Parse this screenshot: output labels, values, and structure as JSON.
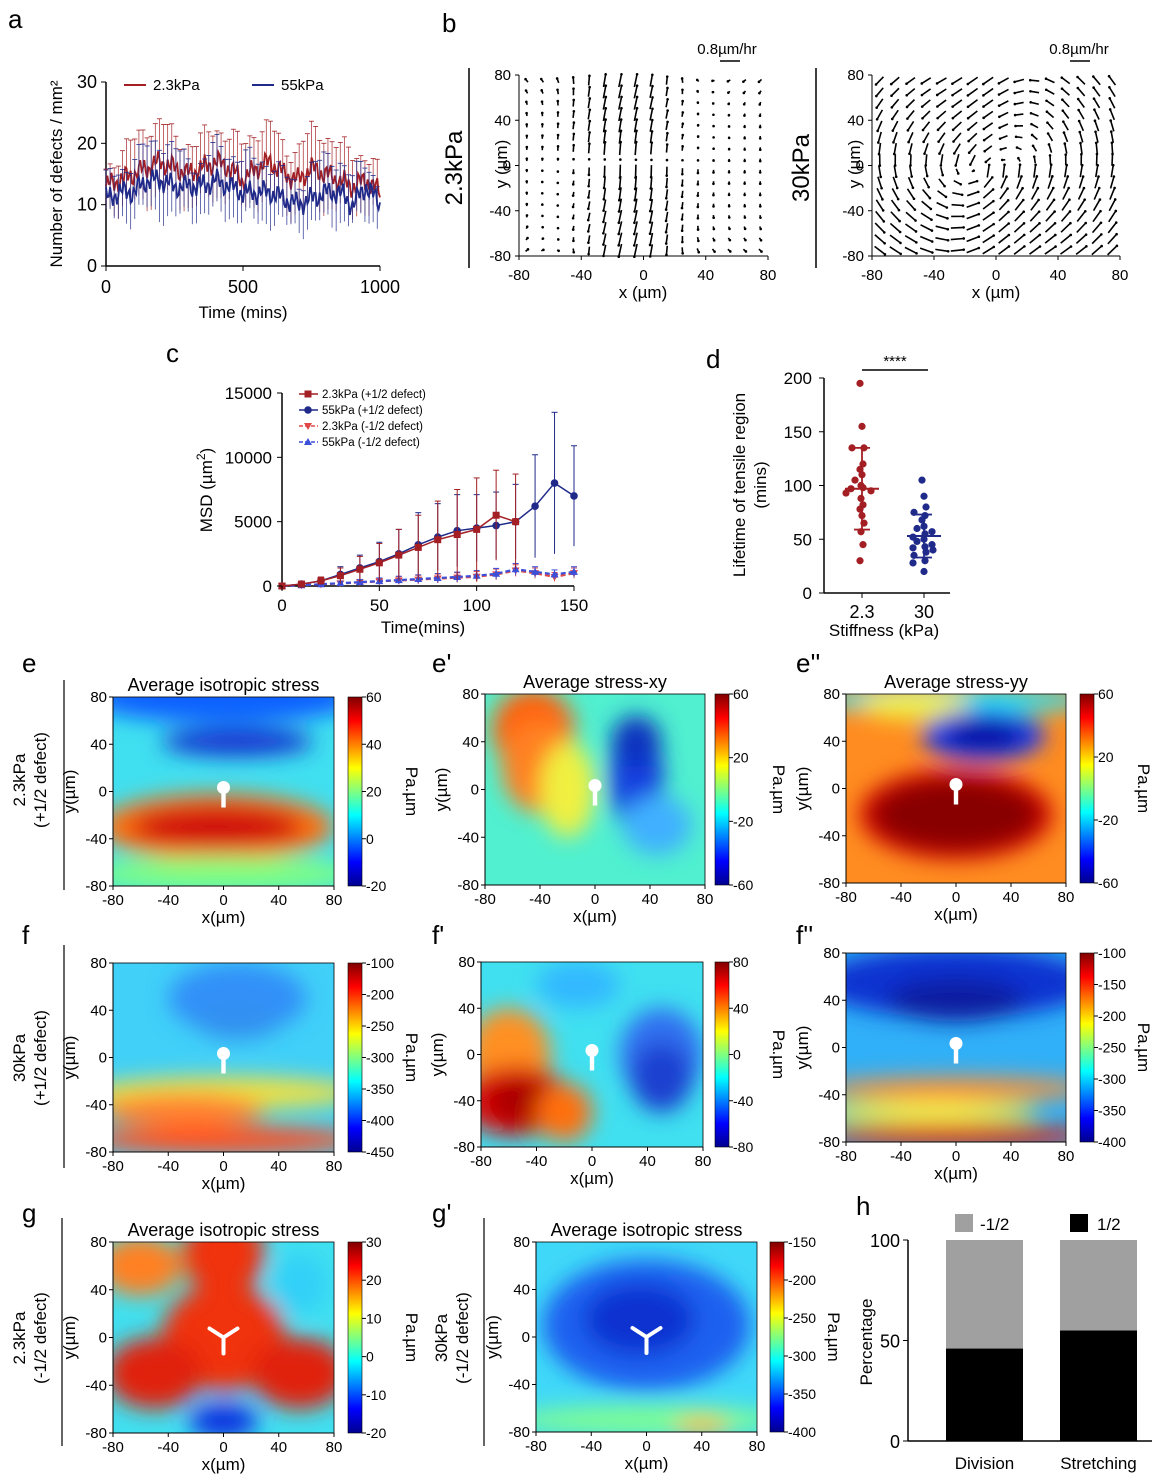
{
  "panels": {
    "a": {
      "label": "a",
      "chart_data": {
        "type": "line",
        "xlabel": "Time (mins)",
        "ylabel": "Number of defects / mm²",
        "xlim": [
          0,
          1000
        ],
        "ylim": [
          0,
          30
        ],
        "xticks": [
          "0",
          "500",
          "1000"
        ],
        "yticks": [
          "0",
          "10",
          "20",
          "30"
        ],
        "legend_position": "top",
        "series": [
          {
            "name": "2.3kPa",
            "color": "#a31f24",
            "x": [
              0,
              50,
              100,
              150,
              200,
              250,
              300,
              350,
              400,
              450,
              500,
              550,
              600,
              650,
              700,
              750,
              800,
              850,
              900,
              950,
              1000
            ],
            "y": [
              13,
              14,
              15,
              16,
              17,
              16,
              15,
              16,
              17,
              16,
              14,
              16,
              17,
              15,
              14,
              16,
              15,
              14,
              13,
              14,
              12
            ],
            "err": [
              4,
              5,
              5,
              6,
              6,
              5,
              6,
              6,
              6,
              5,
              5,
              6,
              6,
              6,
              6,
              6,
              6,
              5,
              5,
              5,
              4
            ]
          },
          {
            "name": "55kPa",
            "color": "#1f2a8a",
            "x": [
              0,
              50,
              100,
              150,
              200,
              250,
              300,
              350,
              400,
              450,
              500,
              550,
              600,
              650,
              700,
              750,
              800,
              850,
              900,
              950,
              1000
            ],
            "y": [
              11,
              12,
              12,
              14,
              14,
              13,
              13,
              13,
              14,
              13,
              12,
              12,
              12,
              11,
              10,
              11,
              12,
              12,
              10,
              13,
              10
            ],
            "err": [
              4,
              4,
              5,
              5,
              6,
              6,
              5,
              5,
              6,
              5,
              5,
              5,
              5,
              5,
              4,
              5,
              5,
              5,
              4,
              5,
              4
            ]
          }
        ]
      }
    },
    "b": {
      "label": "b",
      "scale_label": "0.8µm/hr",
      "xlabel": "x (µm)",
      "ylabel": "y (µm)",
      "xticks": [
        "-80",
        "-40",
        "0",
        "40",
        "80"
      ],
      "yticks": [
        "80",
        "40",
        "0",
        "-40",
        "-80"
      ],
      "subpanels": [
        {
          "row_label": "2.3kPa",
          "chart_data": {
            "type": "vector-field",
            "pattern": "comet"
          }
        },
        {
          "row_label": "30kPa",
          "chart_data": {
            "type": "vector-field",
            "pattern": "vortex"
          }
        }
      ]
    },
    "c": {
      "label": "c",
      "chart_data": {
        "type": "line",
        "xlabel": "Time(mins)",
        "ylabel": "MSD (µm²)",
        "ylabel_main": "MSD (µm",
        "ylabel_sup": "2",
        "ylabel_close": ")",
        "xlim": [
          0,
          150
        ],
        "ylim": [
          0,
          15000
        ],
        "xticks": [
          "0",
          "50",
          "100",
          "150"
        ],
        "yticks": [
          "0",
          "5000",
          "10000",
          "15000"
        ],
        "legend_position": "top-left",
        "series": [
          {
            "name": "2.3kPa (+1/2 defect)",
            "color": "#a31f24",
            "style": "solid",
            "marker": "square",
            "x": [
              0,
              10,
              20,
              30,
              40,
              50,
              60,
              70,
              80,
              90,
              100,
              110,
              120
            ],
            "y": [
              0,
              150,
              400,
              800,
              1300,
              1800,
              2400,
              3000,
              3600,
              4000,
              4400,
              5500,
              5000
            ],
            "err": [
              0,
              100,
              300,
              600,
              1000,
              1500,
              2000,
              2500,
              3000,
              3500,
              4000,
              3500,
              3700
            ]
          },
          {
            "name": "55kPa (+1/2 defect)",
            "color": "#1f2a8a",
            "style": "solid",
            "marker": "circle",
            "x": [
              0,
              10,
              20,
              30,
              40,
              50,
              60,
              70,
              80,
              90,
              100,
              110,
              120,
              130,
              140,
              150
            ],
            "y": [
              0,
              150,
              400,
              900,
              1400,
              1900,
              2500,
              3200,
              3800,
              4300,
              4500,
              4700,
              5000,
              6200,
              8000,
              7000
            ],
            "err": [
              0,
              100,
              300,
              600,
              1000,
              1500,
              1900,
              2500,
              2600,
              2800,
              2600,
              2600,
              2900,
              4000,
              5500,
              3900
            ]
          },
          {
            "name": "2.3kPa (-1/2 defect)",
            "color": "#e04848",
            "style": "dashed",
            "marker": "triangle-down",
            "x": [
              0,
              10,
              20,
              30,
              40,
              50,
              60,
              70,
              80,
              90,
              100,
              110,
              120,
              130,
              140,
              150
            ],
            "y": [
              0,
              60,
              130,
              200,
              280,
              360,
              430,
              500,
              580,
              650,
              720,
              900,
              1200,
              1000,
              700,
              1000
            ],
            "err": [
              0,
              50,
              100,
              150,
              200,
              250,
              300,
              330,
              350,
              380,
              400,
              420,
              450,
              400,
              350,
              400
            ]
          },
          {
            "name": "55kPa (-1/2 defect)",
            "color": "#3b4fd8",
            "style": "dashed",
            "marker": "triangle-up",
            "x": [
              0,
              10,
              20,
              30,
              40,
              50,
              60,
              70,
              80,
              90,
              100,
              110,
              120,
              130,
              140,
              150
            ],
            "y": [
              0,
              60,
              140,
              220,
              300,
              380,
              460,
              540,
              620,
              700,
              800,
              950,
              1300,
              1100,
              900,
              1100
            ],
            "err": [
              0,
              50,
              100,
              150,
              200,
              250,
              300,
              330,
              350,
              380,
              400,
              420,
              450,
              400,
              350,
              400
            ]
          }
        ]
      }
    },
    "d": {
      "label": "d",
      "significance": "****",
      "chart_data": {
        "type": "scatter",
        "xlabel": "Stiffness (kPa)",
        "ylabel": "Lifetime of tensile region (mins)",
        "ylabel_line1": "Lifetime of tensile region",
        "ylabel_line2": "(mins)",
        "categories": [
          "2.3",
          "30"
        ],
        "ylim": [
          0,
          200
        ],
        "yticks": [
          "0",
          "50",
          "100",
          "150",
          "200"
        ],
        "series": [
          {
            "name": "2.3",
            "color": "#a31f24",
            "mean": 97,
            "sd": 38,
            "values": [
              195,
              155,
              135,
              135,
              120,
              115,
              110,
              105,
              100,
              98,
              97,
              95,
              93,
              88,
              82,
              78,
              72,
              65,
              57,
              45,
              30
            ]
          },
          {
            "name": "30",
            "color": "#1f2a8a",
            "mean": 53,
            "sd": 20,
            "values": [
              105,
              90,
              80,
              75,
              72,
              68,
              62,
              60,
              57,
              55,
              52,
              50,
              48,
              45,
              43,
              42,
              40,
              38,
              35,
              30,
              28,
              20
            ]
          }
        ]
      }
    },
    "heatmaps": {
      "xlabel": "x(µm)",
      "ylabel": "y(µm)",
      "unit": "Pa.µm",
      "xticks": [
        "-80",
        "-40",
        "0",
        "40",
        "80"
      ],
      "yticks": [
        "80",
        "40",
        "0",
        "-40",
        "-80"
      ],
      "rows": [
        {
          "row_label_1": "2.3kPa",
          "row_label_2": "(+1/2 defect)"
        },
        {
          "row_label_1": "30kPa",
          "row_label_2": "(+1/2 defect)"
        },
        {
          "row_label_1": "2.3kPa",
          "row_label_2": "(-1/2 defect)"
        },
        {
          "row_label_1": "30kPa",
          "row_label_2": "(-1/2 defect)"
        }
      ],
      "items": [
        {
          "label": "e",
          "title": "Average isotropic stress",
          "cb_ticks": [
            "60",
            "40",
            "20",
            "0",
            "-20"
          ],
          "chart_data": {
            "type": "heatmap",
            "pattern": "iso-plus-soft"
          }
        },
        {
          "label": "e'",
          "title": "Average stress-xy",
          "cb_ticks": [
            "60",
            "20",
            "-20",
            "-60"
          ],
          "chart_data": {
            "type": "heatmap",
            "pattern": "xy-plus"
          }
        },
        {
          "label": "e''",
          "title": "Average stress-yy",
          "cb_ticks": [
            "60",
            "20",
            "-20",
            "-60"
          ],
          "chart_data": {
            "type": "heatmap",
            "pattern": "yy-plus-soft"
          }
        },
        {
          "label": "f",
          "title": "",
          "cb_ticks": [
            "-100",
            "-200",
            "-250",
            "-300",
            "-350",
            "-400",
            "-450"
          ],
          "chart_data": {
            "type": "heatmap",
            "pattern": "iso-plus-stiff"
          }
        },
        {
          "label": "f'",
          "title": "",
          "cb_ticks": [
            "80",
            "40",
            "0",
            "-40",
            "-80"
          ],
          "chart_data": {
            "type": "heatmap",
            "pattern": "xy-plus-stiff"
          }
        },
        {
          "label": "f''",
          "title": "",
          "cb_ticks": [
            "-100",
            "-150",
            "-200",
            "-250",
            "-300",
            "-350",
            "-400"
          ],
          "chart_data": {
            "type": "heatmap",
            "pattern": "yy-plus-stiff"
          }
        },
        {
          "label": "g",
          "title": "Average isotropic stress",
          "cb_ticks": [
            "30",
            "20",
            "10",
            "0",
            "-10",
            "-20"
          ],
          "chart_data": {
            "type": "heatmap",
            "pattern": "iso-minus-soft"
          }
        },
        {
          "label": "g'",
          "title": "Average isotropic stress",
          "cb_ticks": [
            "-150",
            "-200",
            "-250",
            "-300",
            "-350",
            "-400"
          ],
          "chart_data": {
            "type": "heatmap",
            "pattern": "iso-minus-stiff"
          }
        }
      ]
    },
    "h": {
      "label": "h",
      "chart_data": {
        "type": "bar",
        "stacked": true,
        "ylabel": "Percentage",
        "ylim": [
          0,
          100
        ],
        "yticks": [
          "0",
          "50",
          "100"
        ],
        "categories": [
          "Division",
          "Stretching"
        ],
        "legend_position": "top",
        "series": [
          {
            "name": "1/2",
            "color": "#000000",
            "values": [
              46,
              55
            ]
          },
          {
            "name": "-1/2",
            "color": "#a0a0a0",
            "values": [
              54,
              45
            ]
          }
        ]
      }
    }
  }
}
